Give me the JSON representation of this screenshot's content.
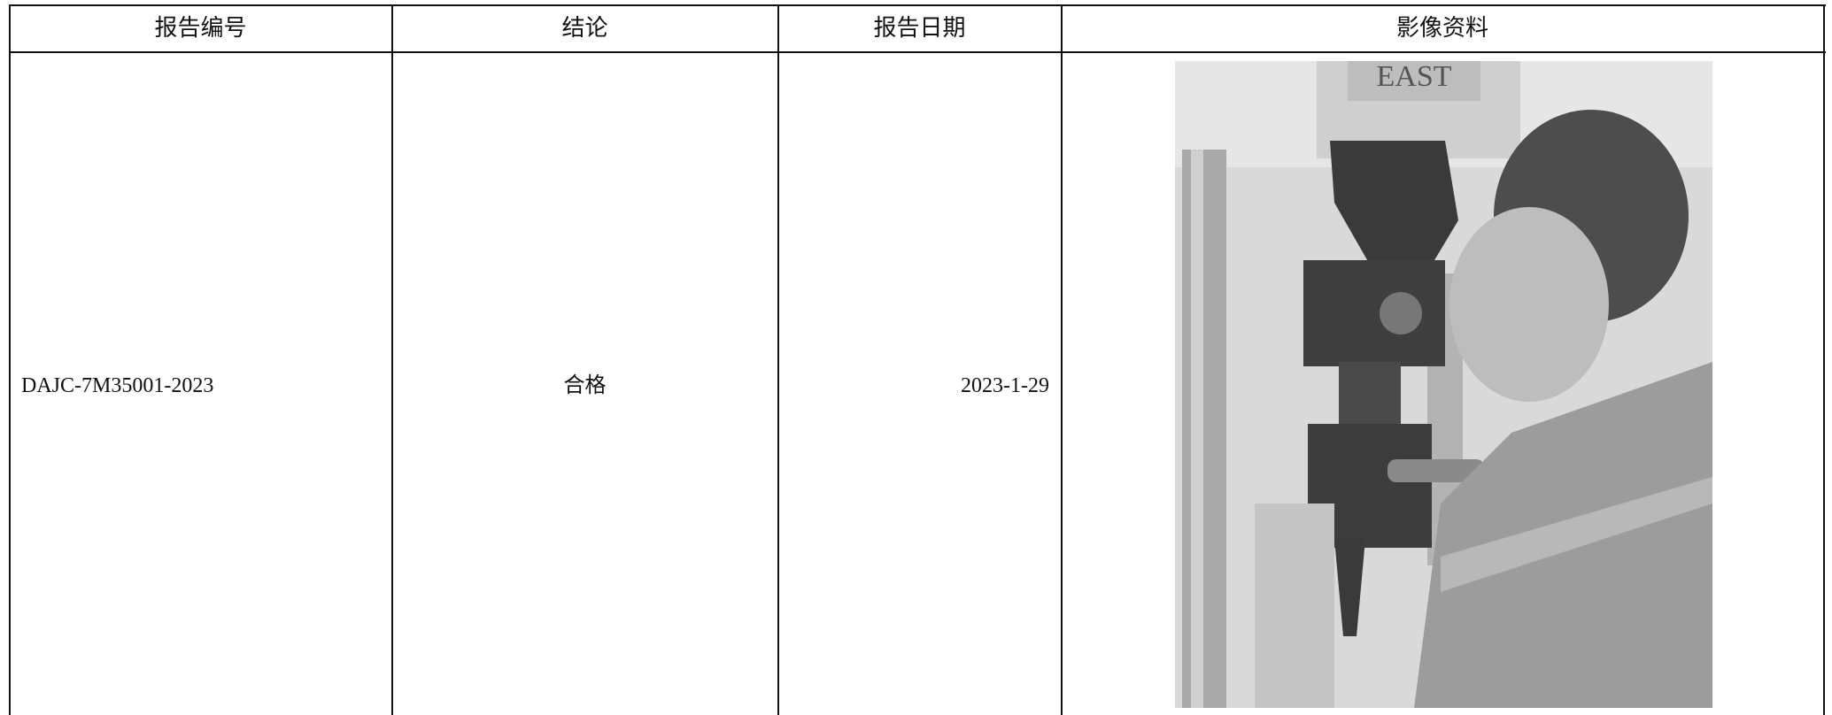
{
  "table": {
    "header": [
      "报告编号",
      "结论",
      "报告日期",
      "影像资料"
    ],
    "rows": [
      [
        "DAJC-7M35001-2023",
        "合格",
        "2023-1-29"
      ]
    ],
    "image_sign": "EAST"
  }
}
